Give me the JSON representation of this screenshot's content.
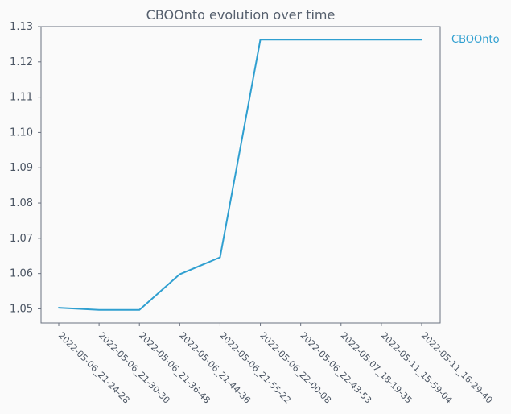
{
  "chart_data": {
    "type": "line",
    "title": "CBOOnto evolution over time",
    "xlabel": "",
    "ylabel": "",
    "categories": [
      "2022-05-06_21-24-28",
      "2022-05-06_21-30-30",
      "2022-05-06_21-36-48",
      "2022-05-06_21-44-36",
      "2022-05-06_21-55-22",
      "2022-05-06_22-00-08",
      "2022-05-06_22-43-53",
      "2022-05-07_18-19-35",
      "2022-05-11_15-59-04",
      "2022-05-11_16-29-40"
    ],
    "series": [
      {
        "name": "CBOOnto",
        "values": [
          1.0503,
          1.0497,
          1.0497,
          1.0598,
          1.0646,
          1.1263,
          1.1263,
          1.1263,
          1.1263,
          1.1263
        ],
        "color": "#2f9fd0"
      }
    ],
    "ylim": [
      1.046,
      1.13
    ],
    "yticks": [
      1.05,
      1.06,
      1.07,
      1.08,
      1.09,
      1.1,
      1.11,
      1.12,
      1.13
    ],
    "grid": false,
    "legend": "right"
  },
  "colors": {
    "background": "#fafafa",
    "axis": "#6b7280",
    "text": "#4b5563",
    "line": "#2f9fd0"
  }
}
